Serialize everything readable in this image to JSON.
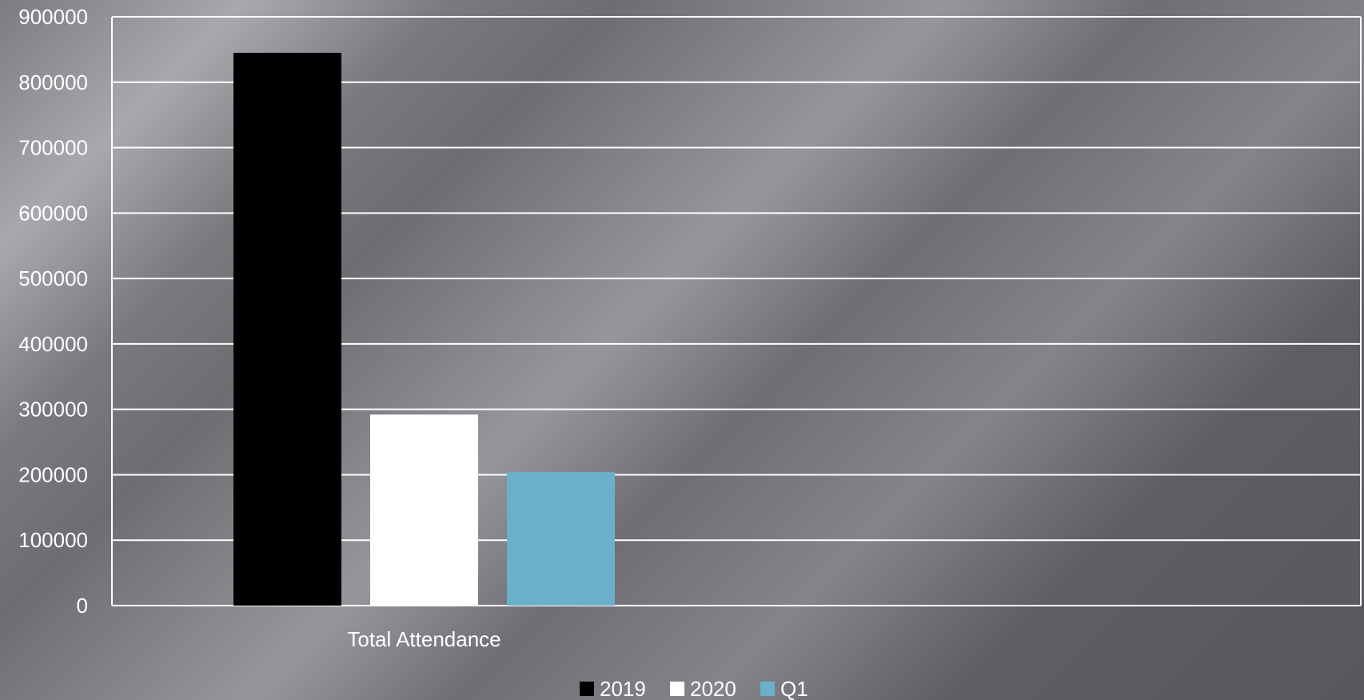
{
  "chart_data": {
    "type": "bar",
    "title": "",
    "xlabel": "",
    "ylabel": "",
    "categories": [
      "Total Attendance"
    ],
    "series": [
      {
        "name": "2019",
        "values": [
          845000
        ],
        "color": "#000000"
      },
      {
        "name": "2020",
        "values": [
          292000
        ],
        "color": "#ffffff"
      },
      {
        "name": "Q1",
        "values": [
          204000
        ],
        "color": "#6bb0cb"
      }
    ],
    "ylim": [
      0,
      900000
    ],
    "yticks": [
      "0",
      "100000",
      "200000",
      "300000",
      "400000",
      "500000",
      "600000",
      "700000",
      "800000",
      "900000"
    ],
    "grid": true,
    "legend_position": "bottom",
    "gridline_color": "#ffffff"
  }
}
